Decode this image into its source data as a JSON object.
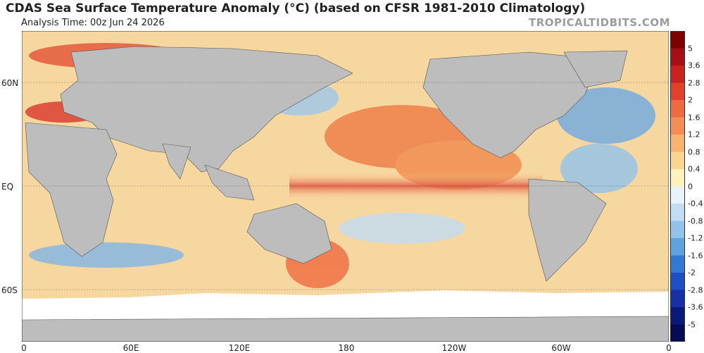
{
  "header": {
    "title": "CDAS Sea Surface Temperature Anomaly (°C) (based on CFSR 1981-2010 Climatology)",
    "analysis_time": "Analysis Time: 00z Jun 24 2026",
    "brand": "TROPICALTIDBITS.COM"
  },
  "map": {
    "lat_labels": [
      "60N",
      "EQ",
      "60S"
    ],
    "lon_labels": [
      "0",
      "60E",
      "120E",
      "180",
      "120W",
      "60W",
      "0"
    ],
    "land_color": "#bdbdbd",
    "ice_color": "#ffffff"
  },
  "colorbar": {
    "labels": [
      "5",
      "3.6",
      "2.8",
      "2",
      "1.6",
      "1.2",
      "0.8",
      "0.4",
      "0",
      "-0.4",
      "-0.8",
      "-1.2",
      "-1.6",
      "-2",
      "-2.8",
      "-3.6",
      "-5"
    ],
    "colors": [
      "#7f0000",
      "#a50f15",
      "#c9221f",
      "#e0412b",
      "#ef6b3f",
      "#f48e55",
      "#f8b36e",
      "#fbd58e",
      "#fdf2bc",
      "#e9f3fb",
      "#c2ddf2",
      "#92c3ea",
      "#5ea3e0",
      "#3279d3",
      "#1f4fc4",
      "#1730a6",
      "#0a1a7a",
      "#050c55"
    ]
  }
}
